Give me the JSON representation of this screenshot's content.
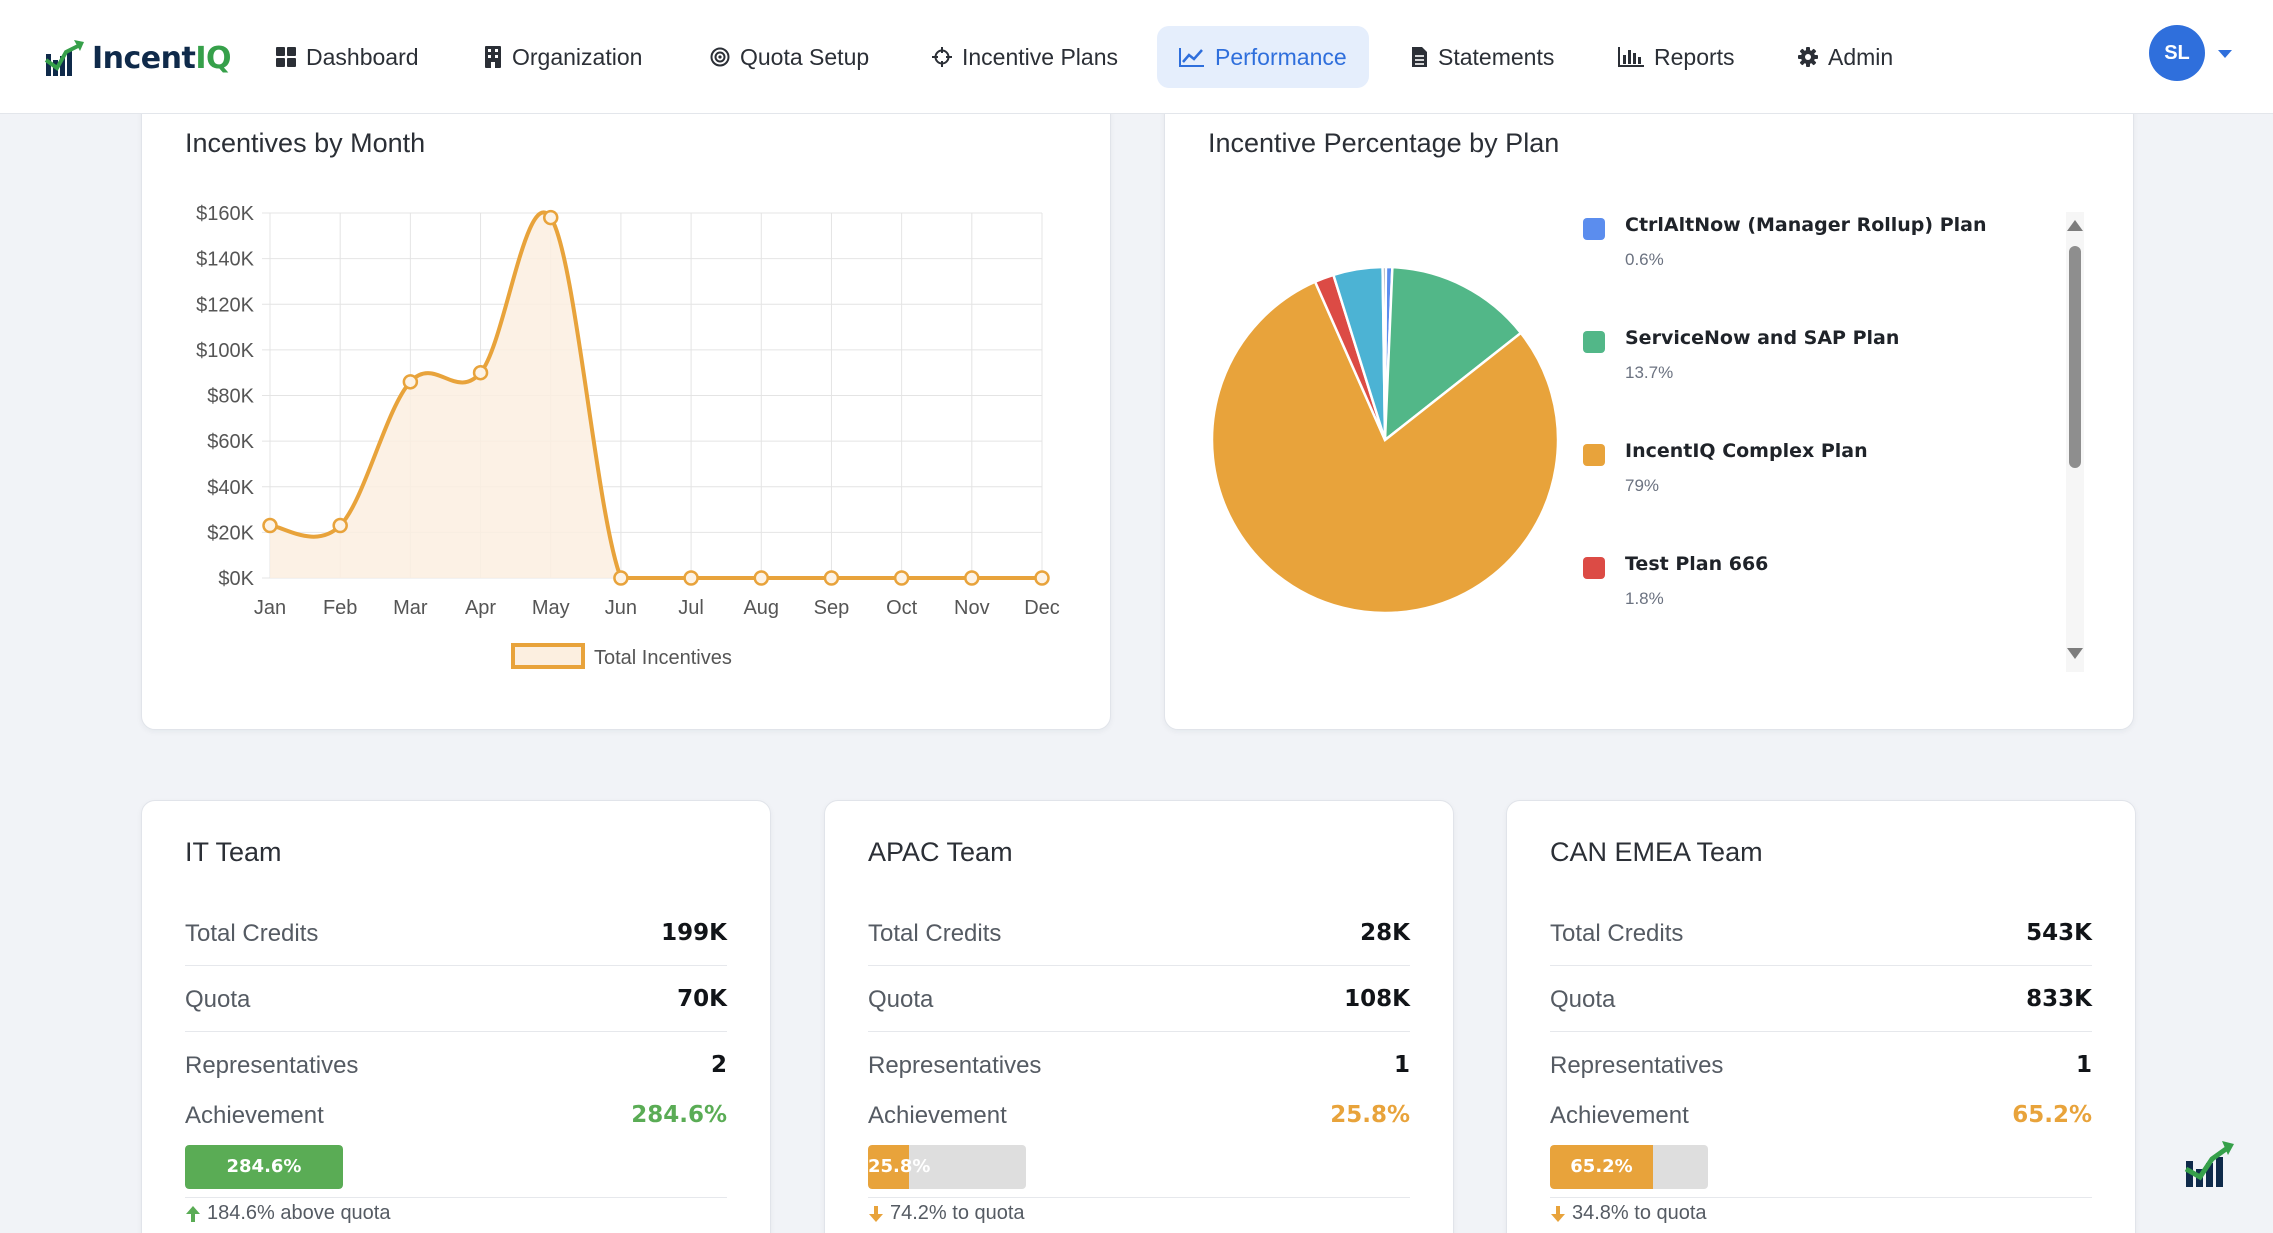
{
  "brand": {
    "name_part1": "Incent",
    "name_part2": "IQ"
  },
  "nav": {
    "items": [
      {
        "label": "Dashboard",
        "icon": "dashboard-icon"
      },
      {
        "label": "Organization",
        "icon": "building-icon"
      },
      {
        "label": "Quota Setup",
        "icon": "target-icon"
      },
      {
        "label": "Incentive Plans",
        "icon": "crosshair-icon"
      },
      {
        "label": "Performance",
        "icon": "line-chart-icon",
        "active": true
      },
      {
        "label": "Statements",
        "icon": "document-icon"
      },
      {
        "label": "Reports",
        "icon": "bar-chart-icon"
      },
      {
        "label": "Admin",
        "icon": "gear-icon"
      }
    ],
    "user_initials": "SL"
  },
  "colors": {
    "accent": "#2f6fdc",
    "orange": "#e8a33b",
    "green": "#52b788",
    "success": "#5aac55",
    "red": "#dc4b45",
    "teal": "#4cb3d4"
  },
  "incentives_card": {
    "title": "Incentives by Month",
    "legend_label": "Total Incentives"
  },
  "plan_card": {
    "title": "Incentive Percentage by Plan"
  },
  "chart_data": [
    {
      "type": "area",
      "title": "Incentives by Month",
      "categories": [
        "Jan",
        "Feb",
        "Mar",
        "Apr",
        "May",
        "Jun",
        "Jul",
        "Aug",
        "Sep",
        "Oct",
        "Nov",
        "Dec"
      ],
      "series": [
        {
          "name": "Total Incentives",
          "values": [
            23000,
            23000,
            86000,
            90000,
            158000,
            0,
            0,
            0,
            0,
            0,
            0,
            0
          ]
        }
      ],
      "y_ticks": [
        "$0K",
        "$20K",
        "$40K",
        "$60K",
        "$80K",
        "$100K",
        "$120K",
        "$140K",
        "$160K"
      ],
      "ylim": [
        0,
        160000
      ],
      "grid": true,
      "legend": "bottom"
    },
    {
      "type": "pie",
      "title": "Incentive Percentage by Plan",
      "slices": [
        {
          "label": "CtrlAltNow (Manager Rollup) Plan",
          "value": 0.6,
          "pct_text": "0.6%",
          "color": "#5b8dee"
        },
        {
          "label": "ServiceNow and SAP Plan",
          "value": 13.7,
          "pct_text": "13.7%",
          "color": "#52b788"
        },
        {
          "label": "IncentIQ Complex Plan",
          "value": 79,
          "pct_text": "79%",
          "color": "#e8a33b"
        },
        {
          "label": "Test Plan 666",
          "value": 1.8,
          "pct_text": "1.8%",
          "color": "#dc4b45"
        },
        {
          "value": 4.6,
          "color": "#4cb3d4"
        },
        {
          "value": 0.3,
          "color": "#8e96a8"
        }
      ],
      "legend": "right"
    }
  ],
  "teams": [
    {
      "name": "IT Team",
      "total_credits_label": "Total Credits",
      "total_credits": "199K",
      "quota_label": "Quota",
      "quota": "70K",
      "reps_label": "Representatives",
      "reps": "2",
      "achievement_label": "Achievement",
      "achievement": "284.6%",
      "progress": 1.0,
      "bar_color": "#5aac55",
      "note": "184.6% above quota",
      "note_direction": "up"
    },
    {
      "name": "APAC Team",
      "total_credits_label": "Total Credits",
      "total_credits": "28K",
      "quota_label": "Quota",
      "quota": "108K",
      "reps_label": "Representatives",
      "reps": "1",
      "achievement_label": "Achievement",
      "achievement": "25.8%",
      "progress": 0.258,
      "bar_color": "#e8a33b",
      "note": "74.2% to quota",
      "note_direction": "down"
    },
    {
      "name": "CAN EMEA Team",
      "total_credits_label": "Total Credits",
      "total_credits": "543K",
      "quota_label": "Quota",
      "quota": "833K",
      "reps_label": "Representatives",
      "reps": "1",
      "achievement_label": "Achievement",
      "achievement": "65.2%",
      "progress": 0.652,
      "bar_color": "#e8a33b",
      "note": "34.8% to quota",
      "note_direction": "down"
    }
  ]
}
